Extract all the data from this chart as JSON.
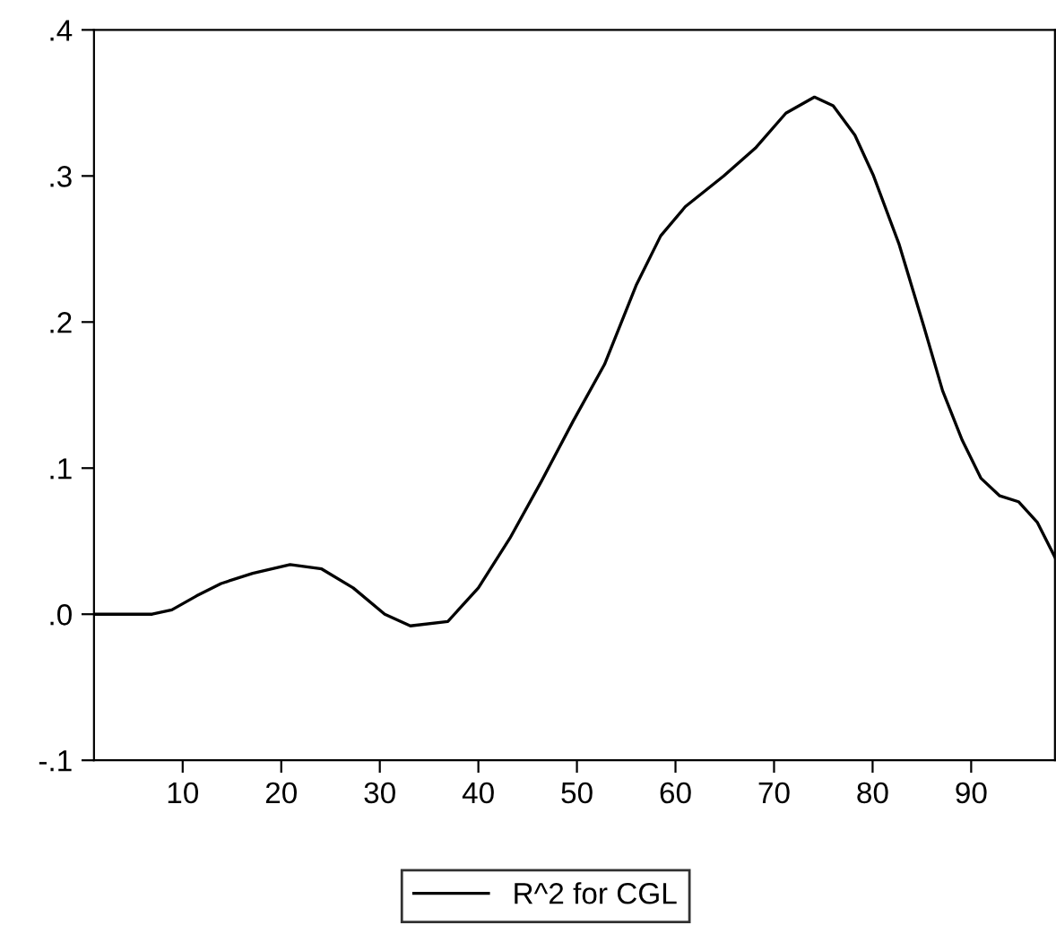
{
  "chart_data": {
    "type": "line",
    "series": [
      {
        "name": "R^2 for CGL",
        "color": "#000000",
        "x": [
          1,
          6.9,
          8.9,
          11.4,
          13.9,
          17.1,
          20.9,
          24.1,
          27.3,
          30.5,
          33.1,
          36.9,
          40.0,
          43.2,
          46.4,
          49.6,
          52.8,
          56.0,
          58.5,
          61.0,
          64.9,
          68.1,
          71.2,
          74.1,
          76.0,
          78.2,
          80.1,
          82.7,
          85.2,
          87.1,
          89.1,
          91.0,
          92.9,
          94.8,
          96.7,
          98.5
        ],
        "values": [
          0,
          0,
          0.003,
          0.0125,
          0.021,
          0.028,
          0.034,
          0.031,
          0.018,
          0,
          -0.008,
          -0.005,
          0.018,
          0.052,
          0.091,
          0.132,
          0.171,
          0.225,
          0.259,
          0.279,
          0.3,
          0.319,
          0.343,
          0.354,
          0.348,
          0.328,
          0.3,
          0.253,
          0.197,
          0.153,
          0.119,
          0.093,
          0.081,
          0.077,
          0.063,
          0.039
        ]
      }
    ],
    "xlim": [
      1,
      98.5
    ],
    "xticks": [
      10,
      20,
      30,
      40,
      50,
      60,
      70,
      80,
      90
    ],
    "ylim": [
      -0.1,
      0.4
    ],
    "yticks": [
      {
        "value": -0.1,
        "label": "-.1"
      },
      {
        "value": 0,
        "label": ".0"
      },
      {
        "value": 0.1,
        "label": ".1"
      },
      {
        "value": 0.2,
        "label": ".2"
      },
      {
        "value": 0.3,
        "label": ".3"
      },
      {
        "value": 0.4,
        "label": ".4"
      }
    ],
    "legend": "bottom",
    "grid": false,
    "marker": "none",
    "line_style": "solid"
  }
}
